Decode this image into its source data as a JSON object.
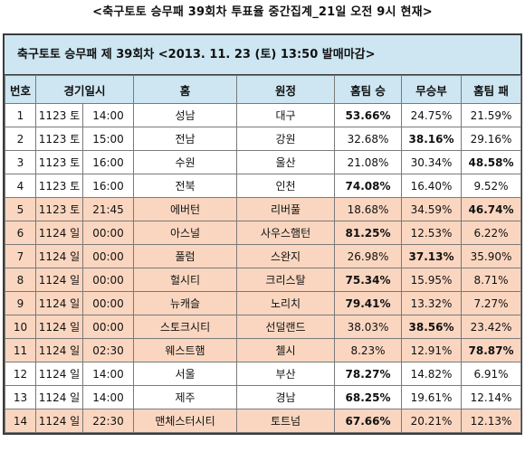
{
  "top_title": "<축구토토 승무패 39회차 투표율 중간집계_21일 오전 9시 현재>",
  "subheader": "축구토토 승무패 제 39회차 <2013. 11. 23 (토) 13:50 발매마감>",
  "headers": [
    "번호",
    "경기일시",
    "홈",
    "원정",
    "홈팀 승",
    "무승부",
    "홈팀 패"
  ],
  "rows": [
    {
      "no": "1",
      "date": "1123 토",
      "time": "14:00",
      "home": "성남",
      "away": "대구",
      "win": "53.66%",
      "draw": "24.75%",
      "lose": "21.59%",
      "bold": "win",
      "highlight": false
    },
    {
      "no": "2",
      "date": "1123 토",
      "time": "15:00",
      "home": "전남",
      "away": "강원",
      "win": "32.68%",
      "draw": "38.16%",
      "lose": "29.16%",
      "bold": "draw",
      "highlight": false
    },
    {
      "no": "3",
      "date": "1123 토",
      "time": "16:00",
      "home": "수원",
      "away": "울산",
      "win": "21.08%",
      "draw": "30.34%",
      "lose": "48.58%",
      "bold": "lose",
      "highlight": false
    },
    {
      "no": "4",
      "date": "1123 토",
      "time": "16:00",
      "home": "전북",
      "away": "인천",
      "win": "74.08%",
      "draw": "16.40%",
      "lose": "9.52%",
      "bold": "win",
      "highlight": false
    },
    {
      "no": "5",
      "date": "1123 토",
      "time": "21:45",
      "home": "에버턴",
      "away": "리버풀",
      "win": "18.68%",
      "draw": "34.59%",
      "lose": "46.74%",
      "bold": "lose",
      "highlight": true
    },
    {
      "no": "6",
      "date": "1124 일",
      "time": "00:00",
      "home": "아스널",
      "away": "사우스햄턴",
      "win": "81.25%",
      "draw": "12.53%",
      "lose": "6.22%",
      "bold": "win",
      "highlight": true
    },
    {
      "no": "7",
      "date": "1124 일",
      "time": "00:00",
      "home": "풀럼",
      "away": "스완지",
      "win": "26.98%",
      "draw": "37.13%",
      "lose": "35.90%",
      "bold": "draw",
      "highlight": true
    },
    {
      "no": "8",
      "date": "1124 일",
      "time": "00:00",
      "home": "헐시티",
      "away": "크리스탈",
      "win": "75.34%",
      "draw": "15.95%",
      "lose": "8.71%",
      "bold": "win",
      "highlight": true
    },
    {
      "no": "9",
      "date": "1124 일",
      "time": "00:00",
      "home": "뉴캐슬",
      "away": "노리치",
      "win": "79.41%",
      "draw": "13.32%",
      "lose": "7.27%",
      "bold": "win",
      "highlight": true
    },
    {
      "no": "10",
      "date": "1124 일",
      "time": "00:00",
      "home": "스토크시티",
      "away": "선덜랜드",
      "win": "38.03%",
      "draw": "38.56%",
      "lose": "23.42%",
      "bold": "draw",
      "highlight": true
    },
    {
      "no": "11",
      "date": "1124 일",
      "time": "02:30",
      "home": "웨스트햄",
      "away": "첼시",
      "win": "8.23%",
      "draw": "12.91%",
      "lose": "78.87%",
      "bold": "lose",
      "highlight": true
    },
    {
      "no": "12",
      "date": "1124 일",
      "time": "14:00",
      "home": "서울",
      "away": "부산",
      "win": "78.27%",
      "draw": "14.82%",
      "lose": "6.91%",
      "bold": "win",
      "highlight": false
    },
    {
      "no": "13",
      "date": "1124 일",
      "time": "14:00",
      "home": "제주",
      "away": "경남",
      "win": "68.25%",
      "draw": "19.61%",
      "lose": "12.14%",
      "bold": "win",
      "highlight": false
    },
    {
      "no": "14",
      "date": "1124 일",
      "time": "22:30",
      "home": "맨체스터시티",
      "away": "토트넘",
      "win": "67.66%",
      "draw": "20.21%",
      "lose": "12.13%",
      "bold": "win",
      "highlight": true
    }
  ]
}
